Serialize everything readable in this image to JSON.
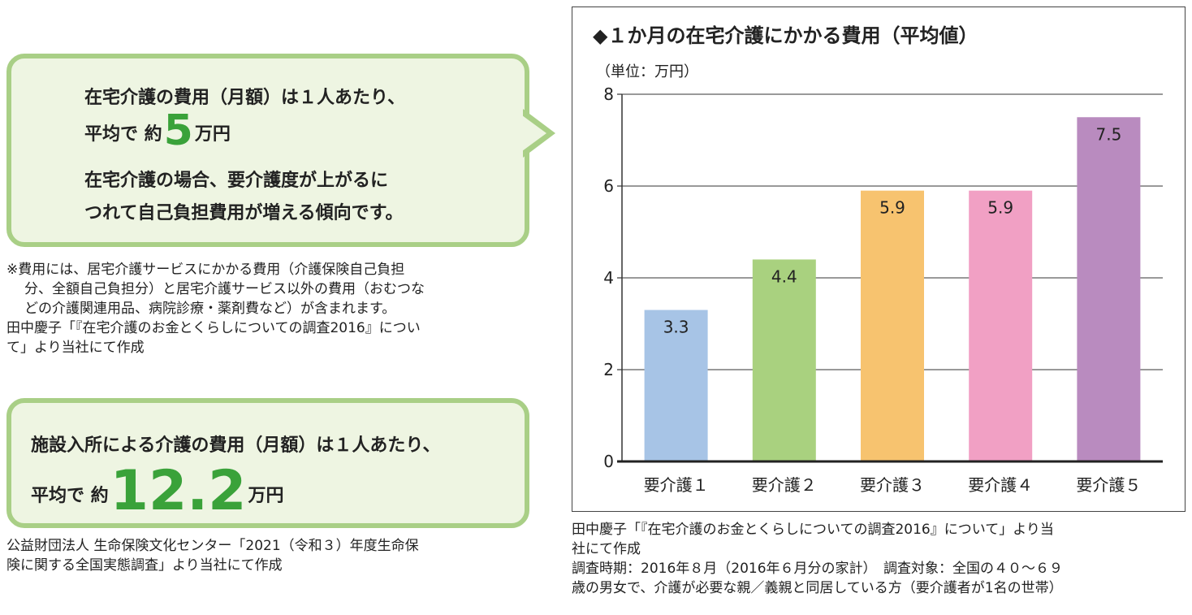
{
  "bubble1": {
    "line1": "在宅介護の費用（月額）は１人あたり、",
    "line2_prefix": "平均で 約",
    "line2_value": "5",
    "line2_suffix": "万円",
    "line3": "在宅介護の場合、要介護度が上がるに",
    "line4": "つれて自己負担費用が増える傾向です。"
  },
  "note1": {
    "line1": "※費用には、居宅介護サービスにかかる費用（介護保険自己負担",
    "line2": "分、全額自己負担分）と居宅介護サービス以外の費用（おむつな",
    "line3": "どの介護関連用品、病院診療・薬剤費など）が含まれます。",
    "line4": "田中慶子「『在宅介護のお金とくらしについての調査2016』につい",
    "line5": "て」より当社にて作成"
  },
  "bubble2": {
    "line1": "施設入所による介護の費用（月額）は１人あたり、",
    "line2_prefix": "平均で 約",
    "line2_value": "12.2",
    "line2_suffix": "万円"
  },
  "note2": {
    "line1": "公益財団法人 生命保険文化センター「2021（令和３）年度生命保",
    "line2": "険に関する全国実態調査」より当社にて作成"
  },
  "note3": {
    "line1": "田中慶子「『在宅介護のお金とくらしについての調査2016』について」より当",
    "line2": "社にて作成",
    "line3": "調査時期：2016年８月（2016年６月分の家計）　調査対象：全国の４０～６９",
    "line4": "歳の男女で、介護が必要な親／義親と同居している方（要介護者が1名の世帯）"
  },
  "chart_data": {
    "type": "bar",
    "title": "◆１か月の在宅介護にかかる費用（平均値）",
    "unit_label": "（単位：万円）",
    "categories": [
      "要介護１",
      "要介護２",
      "要介護３",
      "要介護４",
      "要介護５"
    ],
    "values": [
      3.3,
      4.4,
      5.9,
      5.9,
      7.5
    ],
    "data_labels": [
      "3.3",
      "4.4",
      "5.9",
      "5.9",
      "7.5"
    ],
    "bar_colors": [
      "#a7c4e6",
      "#a9d17f",
      "#f7c36f",
      "#f1a0c4",
      "#b98bbf"
    ],
    "ylim": [
      0,
      8
    ],
    "yticks": [
      "0",
      "2",
      "4",
      "6",
      "8"
    ],
    "grid": true,
    "legend": "none"
  }
}
